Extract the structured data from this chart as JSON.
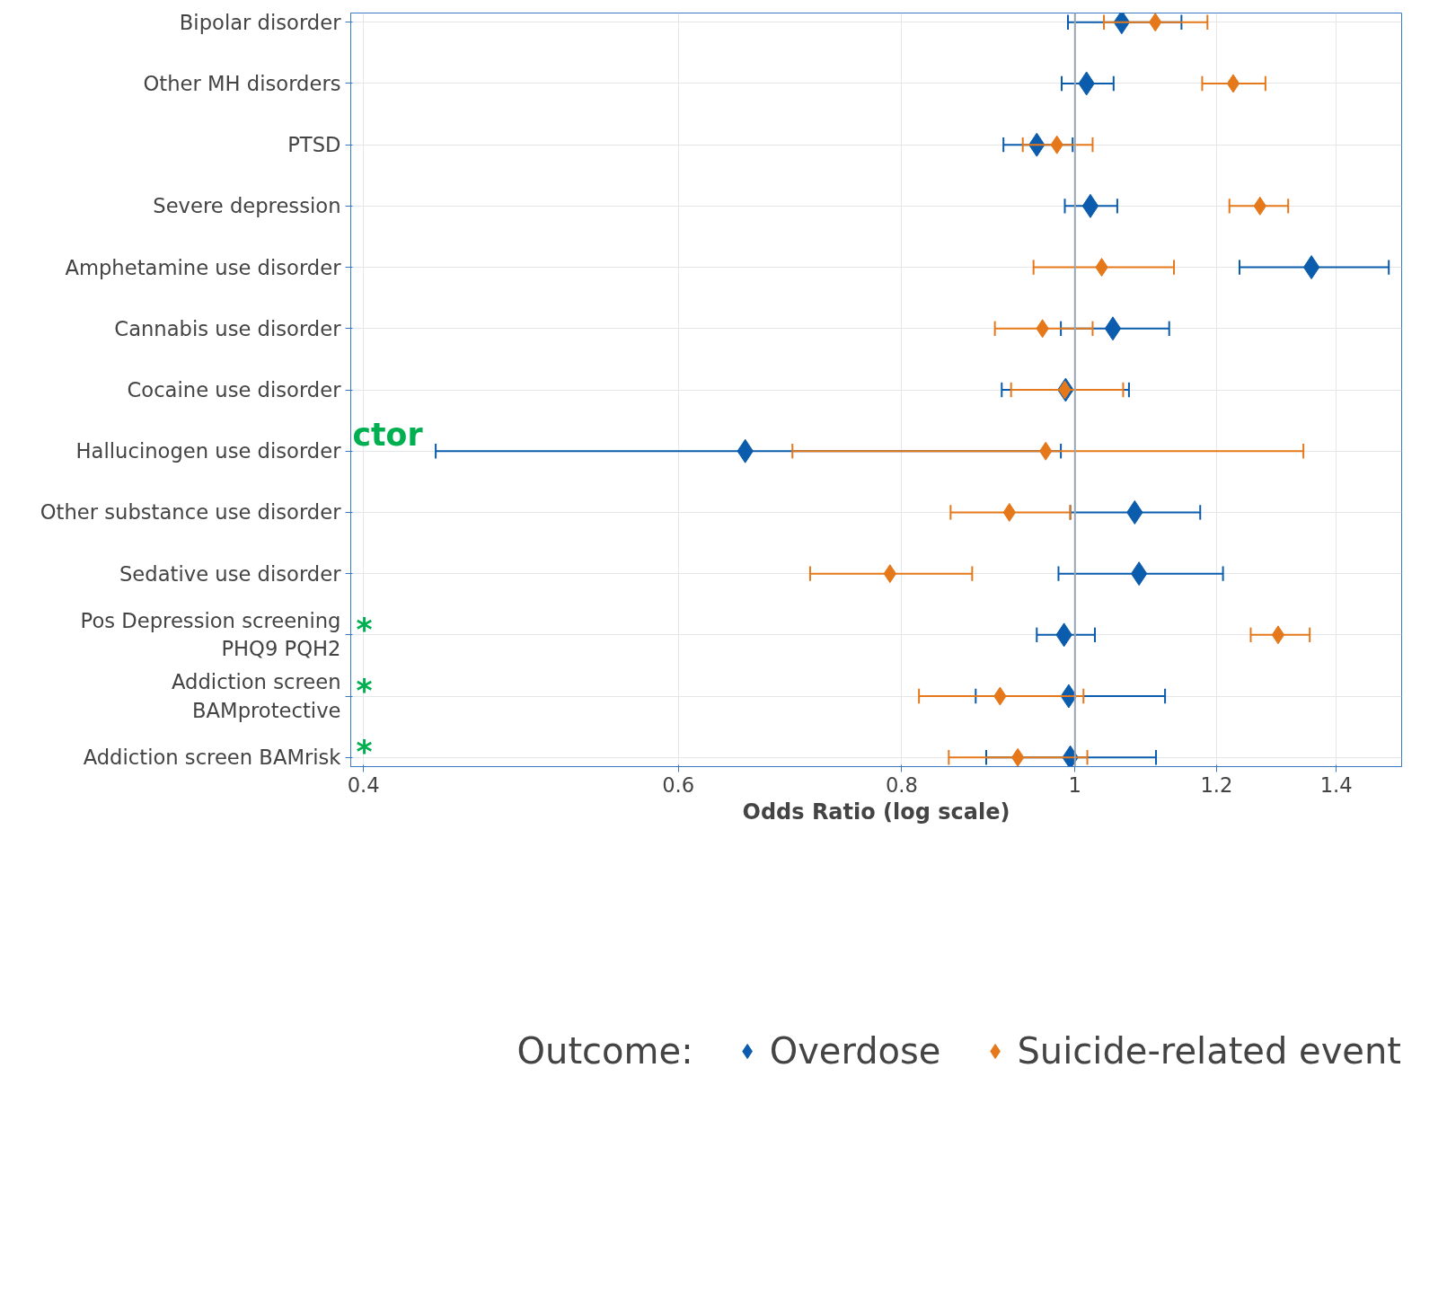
{
  "chart_data": {
    "type": "scatter",
    "orientation": "horizontal",
    "log": "x",
    "xlabel": "Odds Ratio (log scale)",
    "legend_title": "Outcome:",
    "legend": "bottom",
    "grid": true,
    "marker": "diamond",
    "categories": [
      "Bipolar disorder",
      "Other MH disorders",
      "PTSD",
      "Severe depression",
      "Amphetamine use disorder",
      "Cannabis use disorder",
      "Cocaine use disorder",
      "Hallucinogen use disorder",
      "Other substance use disorder",
      "Sedative use disorder",
      "Pos Depression screening\nPHQ9 PQH2",
      "Addiction screen\nBAMprotective",
      "Addiction screen BAMrisk"
    ],
    "xlim": [
      0.3935,
      1.523
    ],
    "xticks": [
      0.4,
      0.6,
      0.8,
      1,
      1.2,
      1.4
    ],
    "series": [
      {
        "name": "Overdose",
        "color": "#0b5cad",
        "values": [
          1.062,
          1.015,
          0.952,
          1.02,
          1.356,
          1.05,
          0.988,
          0.654,
          1.08,
          1.086,
          0.986,
          0.992,
          0.994
        ],
        "errors": [
          [
            0.991,
            1.147
          ],
          [
            0.983,
            1.051
          ],
          [
            0.912,
            0.997
          ],
          [
            0.987,
            1.056
          ],
          [
            1.236,
            1.498
          ],
          [
            0.982,
            1.129
          ],
          [
            0.91,
            1.072
          ],
          [
            0.439,
            0.982
          ],
          [
            0.994,
            1.175
          ],
          [
            0.979,
            1.21
          ],
          [
            0.952,
            1.026
          ],
          [
            0.88,
            1.123
          ],
          [
            0.892,
            1.11
          ]
        ]
      },
      {
        "name": "Suicide-related event",
        "color": "#e5781a",
        "values": [
          1.109,
          1.226,
          0.977,
          1.269,
          1.035,
          0.959,
          0.987,
          0.963,
          0.919,
          0.788,
          1.299,
          0.908,
          0.929
        ],
        "errors": [
          [
            1.038,
            1.186
          ],
          [
            1.178,
            1.278
          ],
          [
            0.935,
            1.023
          ],
          [
            1.22,
            1.316
          ],
          [
            0.948,
            1.136
          ],
          [
            0.902,
            1.023
          ],
          [
            0.921,
            1.064
          ],
          [
            0.695,
            1.342
          ],
          [
            0.852,
            0.994
          ],
          [
            0.711,
            0.876
          ],
          [
            1.254,
            1.353
          ],
          [
            0.818,
            1.011
          ],
          [
            0.85,
            1.016
          ]
        ]
      }
    ],
    "ref_lines": [
      {
        "axis": "x",
        "value": 1,
        "color": "#9aa5b4"
      }
    ],
    "annotations": [
      "*",
      "*",
      "*",
      "ctor"
    ]
  }
}
